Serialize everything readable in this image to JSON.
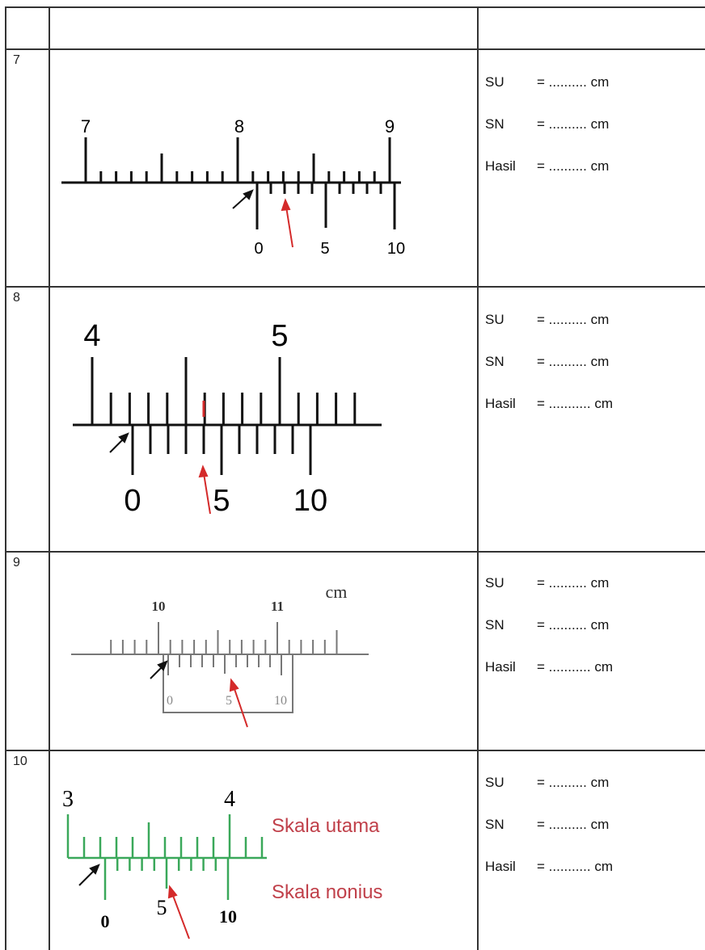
{
  "rows": [
    {
      "number": "7",
      "main_scale_labels": [
        "7",
        "8",
        "9"
      ],
      "vernier_labels": [
        "0",
        "5",
        "10"
      ],
      "answers": [
        {
          "label": "SU",
          "value": "= .......... cm"
        },
        {
          "label": "SN",
          "value": "= .......... cm"
        },
        {
          "label": "Hasil",
          "value": "= .......... cm"
        }
      ]
    },
    {
      "number": "8",
      "main_scale_labels": [
        "4",
        "5"
      ],
      "vernier_labels": [
        "0",
        "5",
        "10"
      ],
      "answers": [
        {
          "label": "SU",
          "value": "= .......... cm"
        },
        {
          "label": "SN",
          "value": "= .......... cm"
        },
        {
          "label": "Hasil",
          "value": "= ........... cm"
        }
      ]
    },
    {
      "number": "9",
      "main_scale_labels": [
        "10",
        "11"
      ],
      "unit_label": "cm",
      "vernier_labels": [
        "0",
        "5",
        "10"
      ],
      "answers": [
        {
          "label": "SU",
          "value": "= .......... cm"
        },
        {
          "label": "SN",
          "value": "= .......... cm"
        },
        {
          "label": "Hasil",
          "value": "= ........... cm"
        }
      ]
    },
    {
      "number": "10",
      "main_scale_labels": [
        "3",
        "4"
      ],
      "vernier_labels": [
        "0",
        "5",
        "10"
      ],
      "scale_names": {
        "main": "Skala utama",
        "vernier": "Skala nonius"
      },
      "answers": [
        {
          "label": "SU",
          "value": "= .......... cm"
        },
        {
          "label": "SN",
          "value": "= .......... cm"
        },
        {
          "label": "Hasil",
          "value": "= ........... cm"
        }
      ]
    }
  ],
  "colors": {
    "arrow_red": "#d42a2a",
    "arrow_black": "#111111",
    "scale_green": "#3aa85a",
    "scale_label_red": "#c0404a"
  }
}
